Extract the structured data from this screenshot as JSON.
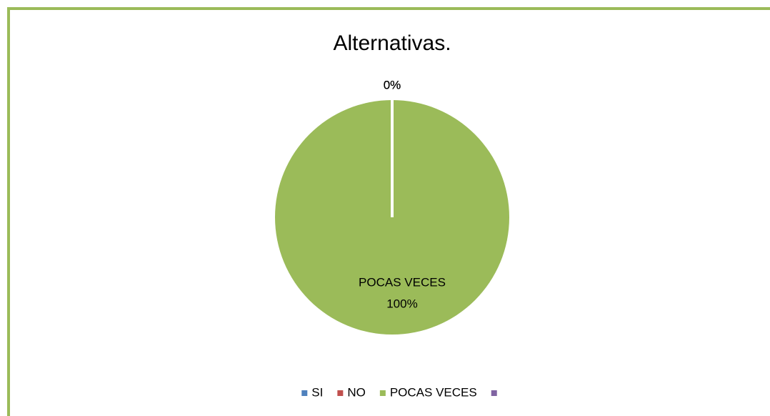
{
  "chart_data": {
    "type": "pie",
    "title": "Alternativas.",
    "categories": [
      "SI",
      "NO",
      "POCAS VECES",
      null
    ],
    "values": [
      0,
      0,
      100,
      0
    ],
    "value_labels": [
      "0%",
      "0%",
      "100%",
      "0%"
    ],
    "colors": [
      "#4f81bd",
      "#c0504d",
      "#9bbb59",
      "#8064a2"
    ],
    "legend": "bottom"
  }
}
